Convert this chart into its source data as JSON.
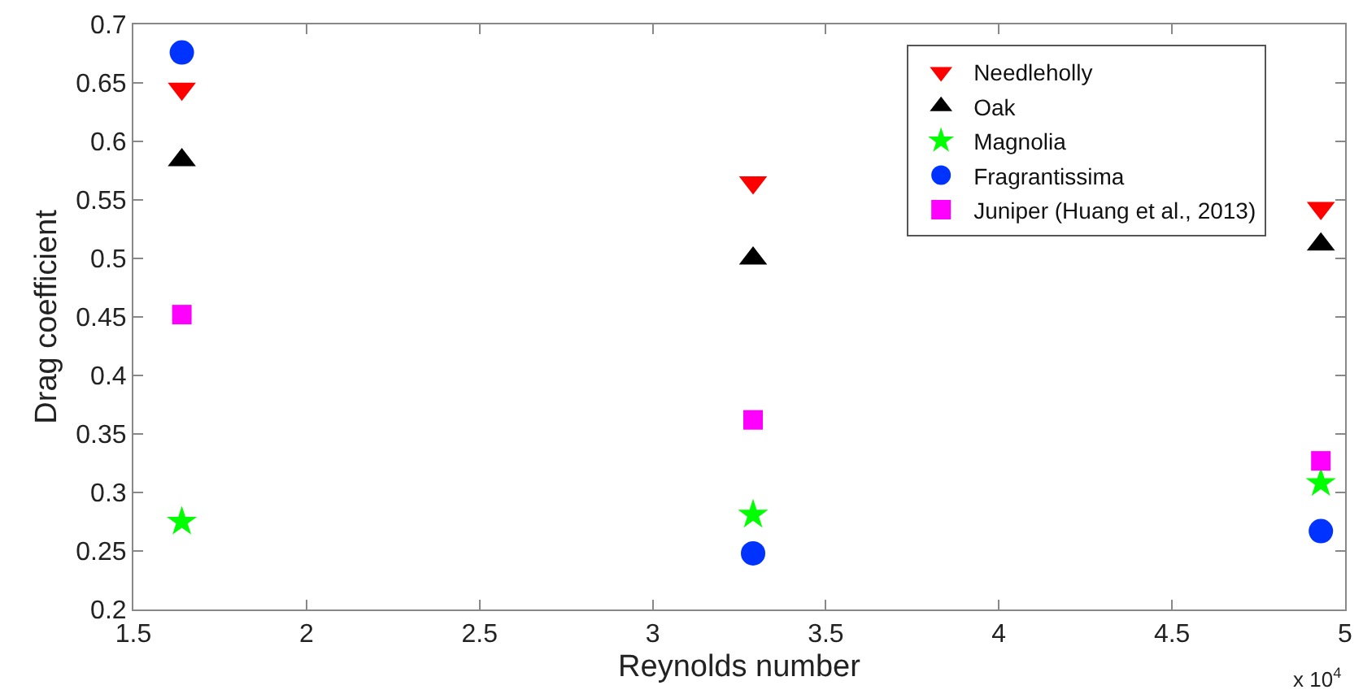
{
  "chart_data": {
    "type": "scatter",
    "xlabel": "Reynolds number",
    "ylabel": "Drag coefficient",
    "x": [
      1.64,
      3.29,
      4.93
    ],
    "series": [
      {
        "name": "Needleholly",
        "color": "#ff0000",
        "marker": "triangle-down",
        "values": [
          0.645,
          0.565,
          0.543
        ]
      },
      {
        "name": "Oak",
        "color": "#000000",
        "marker": "triangle",
        "values": [
          0.584,
          0.5,
          0.512
        ]
      },
      {
        "name": "Magnolia",
        "color": "#00ff00",
        "marker": "star",
        "values": [
          0.275,
          0.281,
          0.308
        ]
      },
      {
        "name": "Fragrantissima",
        "color": "#0033ff",
        "marker": "circle",
        "values": [
          0.676,
          0.248,
          0.267
        ]
      },
      {
        "name": "Juniper (Huang et al., 2013)",
        "color": "#ff00ff",
        "marker": "square",
        "values": [
          0.452,
          0.362,
          0.327
        ]
      }
    ],
    "xlim": [
      1.5,
      5
    ],
    "xticks": [
      1.5,
      2,
      2.5,
      3,
      3.5,
      4,
      4.5,
      5
    ],
    "ylim": [
      0.2,
      0.7
    ],
    "yticks": [
      0.2,
      0.25,
      0.3,
      0.35,
      0.4,
      0.45,
      0.5,
      0.55,
      0.6,
      0.65,
      0.7
    ],
    "legend": "top right",
    "annotations": [
      "x 10$^{4}$"
    ]
  }
}
